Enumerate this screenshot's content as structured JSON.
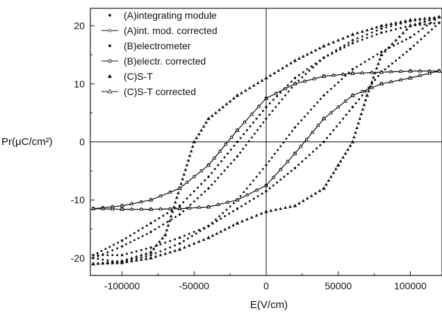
{
  "chart_data": {
    "type": "scatter",
    "xlabel": "E(V/cm)",
    "ylabel": "Pr(μC/cm²)",
    "xlim": [
      -122000,
      122000
    ],
    "ylim": [
      -23,
      23
    ],
    "xticks": [
      -100000,
      -50000,
      0,
      50000,
      100000
    ],
    "xticklabels": [
      "-100000",
      "-50000",
      "0",
      "50000",
      "100000"
    ],
    "yticks": [
      -20,
      -10,
      0,
      10,
      20
    ],
    "yticklabels": [
      "-20",
      "-10",
      "0",
      "10",
      "20"
    ],
    "grid": false,
    "zero_lines": true,
    "legend_position": "top-left",
    "series": [
      {
        "name": "(A)integrating module",
        "marker": "diamond",
        "upper": [
          [
            -120000,
            -20
          ],
          [
            -100000,
            -18
          ],
          [
            -80000,
            -15.5
          ],
          [
            -60000,
            -12.5
          ],
          [
            -40000,
            -8
          ],
          [
            -20000,
            -2.5
          ],
          [
            0,
            4
          ],
          [
            20000,
            10
          ],
          [
            40000,
            14.5
          ],
          [
            60000,
            17.5
          ],
          [
            80000,
            19.5
          ],
          [
            100000,
            20.8
          ],
          [
            120000,
            21.5
          ]
        ],
        "lower": [
          [
            120000,
            21.5
          ],
          [
            100000,
            18
          ],
          [
            80000,
            15.5
          ],
          [
            60000,
            12.5
          ],
          [
            40000,
            8
          ],
          [
            20000,
            2.5
          ],
          [
            0,
            -4
          ],
          [
            -20000,
            -10
          ],
          [
            -40000,
            -14.5
          ],
          [
            -60000,
            -17.5
          ],
          [
            -80000,
            -19.5
          ],
          [
            -100000,
            -20.8
          ],
          [
            -120000,
            -20
          ]
        ]
      },
      {
        "name": "(A)int. mod. corrected",
        "marker": "line-dot",
        "upper": [
          [
            -120000,
            -11.5
          ],
          [
            -100000,
            -11
          ],
          [
            -80000,
            -10
          ],
          [
            -60000,
            -8
          ],
          [
            -40000,
            -4
          ],
          [
            -20000,
            2
          ],
          [
            0,
            7.5
          ],
          [
            20000,
            10
          ],
          [
            40000,
            11.3
          ],
          [
            60000,
            11.8
          ],
          [
            80000,
            12
          ],
          [
            100000,
            12.2
          ],
          [
            120000,
            12.2
          ]
        ],
        "lower": [
          [
            120000,
            12.2
          ],
          [
            100000,
            11
          ],
          [
            80000,
            10
          ],
          [
            60000,
            8
          ],
          [
            40000,
            4
          ],
          [
            20000,
            -2
          ],
          [
            0,
            -7.5
          ],
          [
            -20000,
            -10
          ],
          [
            -40000,
            -11.2
          ],
          [
            -60000,
            -11.5
          ],
          [
            -80000,
            -11.6
          ],
          [
            -100000,
            -11.6
          ],
          [
            -120000,
            -11.5
          ]
        ]
      },
      {
        "name": "(B)electrometer",
        "marker": "square",
        "upper": [
          [
            -120000,
            -19.5
          ],
          [
            -100000,
            -17
          ],
          [
            -80000,
            -14
          ],
          [
            -60000,
            -11
          ],
          [
            -40000,
            -6
          ],
          [
            -20000,
            0
          ],
          [
            0,
            6
          ],
          [
            20000,
            11
          ],
          [
            40000,
            14.5
          ],
          [
            60000,
            17
          ],
          [
            80000,
            18.8
          ],
          [
            100000,
            20
          ],
          [
            120000,
            20.5
          ]
        ],
        "lower": [
          [
            120000,
            20.5
          ],
          [
            100000,
            16
          ],
          [
            80000,
            12
          ],
          [
            60000,
            6
          ],
          [
            40000,
            0
          ],
          [
            20000,
            -4.5
          ],
          [
            0,
            -8.5
          ],
          [
            -20000,
            -11.5
          ],
          [
            -40000,
            -14.5
          ],
          [
            -60000,
            -16.5
          ],
          [
            -80000,
            -18.2
          ],
          [
            -100000,
            -19.5
          ],
          [
            -120000,
            -19.5
          ]
        ]
      },
      {
        "name": "(B)electr. corrected",
        "marker": "line-square",
        "upper": [
          [
            -120000,
            -11.5
          ],
          [
            -100000,
            -11
          ],
          [
            -80000,
            -10
          ],
          [
            -60000,
            -8
          ],
          [
            -40000,
            -4
          ],
          [
            -20000,
            2
          ],
          [
            0,
            7.5
          ],
          [
            20000,
            10
          ],
          [
            40000,
            11.3
          ],
          [
            60000,
            11.8
          ],
          [
            80000,
            12
          ],
          [
            100000,
            12.2
          ],
          [
            120000,
            12.2
          ]
        ],
        "lower": [
          [
            120000,
            12.2
          ],
          [
            100000,
            11
          ],
          [
            80000,
            10
          ],
          [
            60000,
            8
          ],
          [
            40000,
            4
          ],
          [
            20000,
            -2
          ],
          [
            0,
            -7.5
          ],
          [
            -20000,
            -10
          ],
          [
            -40000,
            -11.2
          ],
          [
            -60000,
            -11.5
          ],
          [
            -80000,
            -11.6
          ],
          [
            -100000,
            -11.6
          ],
          [
            -120000,
            -11.5
          ]
        ]
      },
      {
        "name": "(C)S-T",
        "marker": "triangle",
        "upper": [
          [
            -120000,
            -21
          ],
          [
            -100000,
            -20.5
          ],
          [
            -80000,
            -19
          ],
          [
            -70000,
            -16
          ],
          [
            -60000,
            -8
          ],
          [
            -50000,
            0
          ],
          [
            -40000,
            4
          ],
          [
            -20000,
            8
          ],
          [
            0,
            11
          ],
          [
            20000,
            14
          ],
          [
            40000,
            16.5
          ],
          [
            60000,
            18.5
          ],
          [
            80000,
            20
          ],
          [
            100000,
            21
          ],
          [
            120000,
            21.5
          ]
        ],
        "lower": [
          [
            120000,
            21.5
          ],
          [
            100000,
            20
          ],
          [
            80000,
            15
          ],
          [
            70000,
            8
          ],
          [
            60000,
            0
          ],
          [
            50000,
            -4
          ],
          [
            40000,
            -8
          ],
          [
            20000,
            -11
          ],
          [
            0,
            -12
          ],
          [
            -20000,
            -14
          ],
          [
            -40000,
            -16.5
          ],
          [
            -60000,
            -18.5
          ],
          [
            -80000,
            -20
          ],
          [
            -100000,
            -20.8
          ],
          [
            -120000,
            -21
          ]
        ]
      },
      {
        "name": "(C)S-T corrected",
        "marker": "line-triangle",
        "upper": [
          [
            -120000,
            -11.5
          ],
          [
            -100000,
            -11
          ],
          [
            -80000,
            -10
          ],
          [
            -60000,
            -8
          ],
          [
            -40000,
            -4
          ],
          [
            -20000,
            2
          ],
          [
            0,
            7.5
          ],
          [
            20000,
            10
          ],
          [
            40000,
            11.3
          ],
          [
            60000,
            11.8
          ],
          [
            80000,
            12
          ],
          [
            100000,
            12.2
          ],
          [
            120000,
            12.2
          ]
        ],
        "lower": [
          [
            120000,
            12.2
          ],
          [
            100000,
            11
          ],
          [
            80000,
            10
          ],
          [
            60000,
            8
          ],
          [
            40000,
            4
          ],
          [
            20000,
            -2
          ],
          [
            0,
            -7.5
          ],
          [
            -20000,
            -10
          ],
          [
            -40000,
            -11.2
          ],
          [
            -60000,
            -11.5
          ],
          [
            -80000,
            -11.6
          ],
          [
            -100000,
            -11.6
          ],
          [
            -120000,
            -11.5
          ]
        ]
      }
    ]
  }
}
